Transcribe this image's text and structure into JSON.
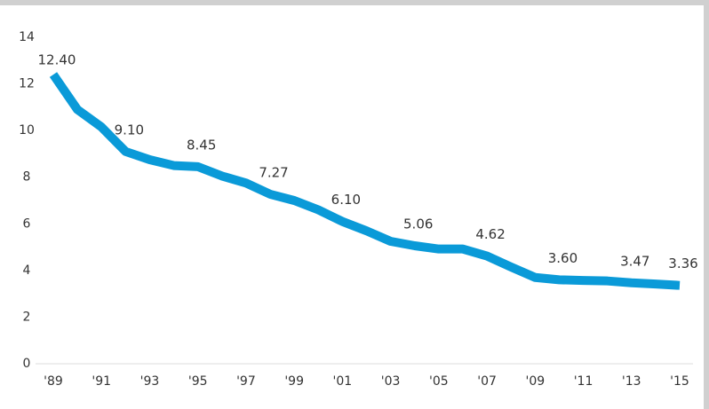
{
  "chart_data": {
    "type": "line",
    "categories": [
      "'89",
      null,
      "'91",
      null,
      "'93",
      null,
      "'95",
      null,
      "'97",
      null,
      "'99",
      null,
      "'01",
      null,
      "'03",
      null,
      "'05",
      null,
      "'07",
      null,
      "'09",
      null,
      "'11",
      null,
      "'13",
      null,
      "'15"
    ],
    "series": [
      {
        "color": "#0a9ad8",
        "values": [
          12.4,
          10.9,
          10.15,
          9.1,
          8.75,
          8.5,
          8.45,
          8.05,
          7.75,
          7.27,
          7.0,
          6.6,
          6.1,
          5.7,
          5.25,
          5.06,
          4.92,
          4.92,
          4.62,
          4.15,
          3.7,
          3.6,
          3.57,
          3.55,
          3.47,
          3.42,
          3.36
        ],
        "value_labels": [
          "12.40",
          null,
          null,
          "9.10",
          null,
          null,
          "8.45",
          null,
          null,
          "7.27",
          null,
          null,
          "6.10",
          null,
          null,
          "5.06",
          null,
          null,
          "4.62",
          null,
          null,
          "3.60",
          null,
          null,
          "3.47",
          null,
          "3.36"
        ]
      }
    ],
    "ylim": [
      0,
      14
    ],
    "yticks": [
      0,
      2,
      4,
      6,
      8,
      10,
      12,
      14
    ]
  }
}
